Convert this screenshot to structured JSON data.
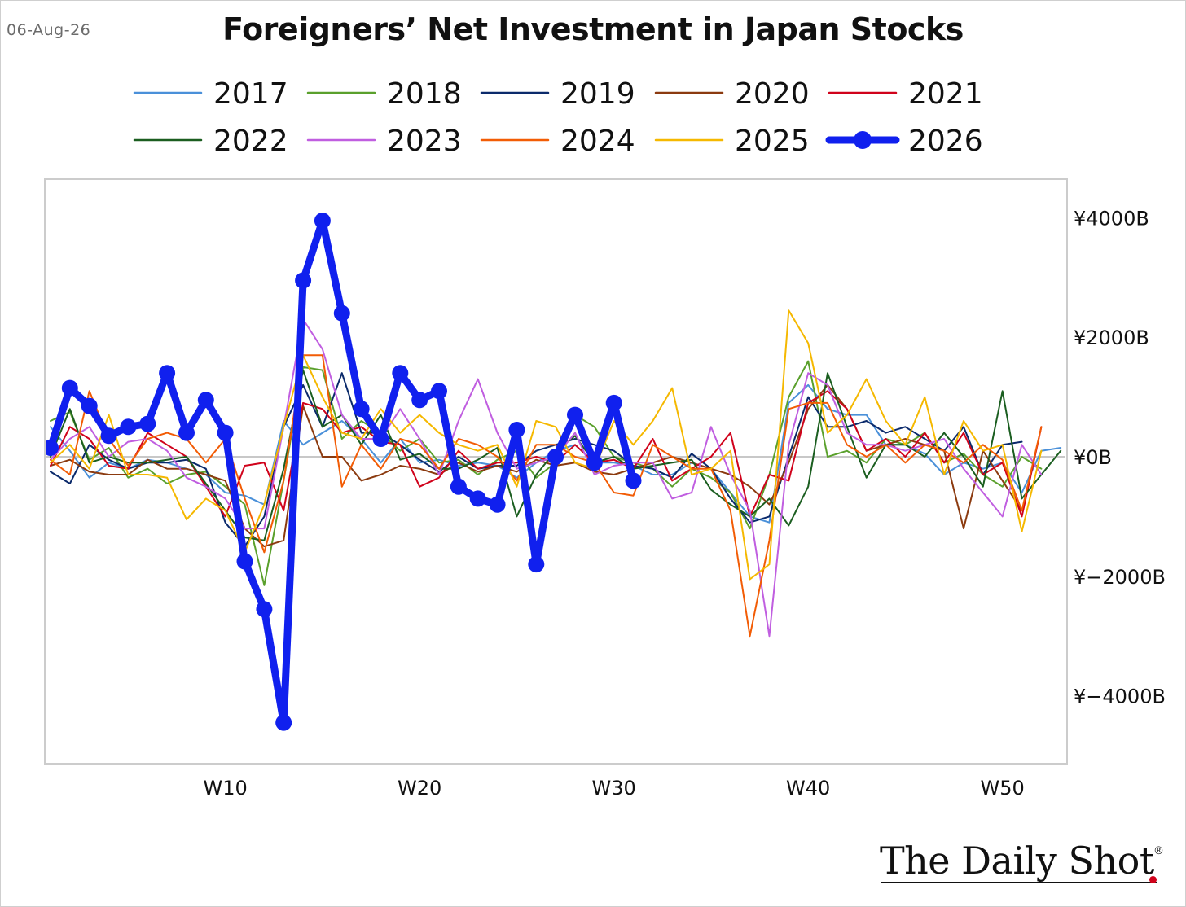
{
  "header": {
    "date": "06-Aug-26",
    "title": "Foreigners’ Net Investment in Japan Stocks"
  },
  "brand": {
    "name": "The Daily Shot",
    "registered_mark": "®"
  },
  "chart_data": {
    "type": "line",
    "title": "Foreigners’ Net Investment in Japan Stocks",
    "xlabel": "",
    "ylabel": "",
    "x_unit": "week",
    "x_tick_labels": [
      {
        "week": 10,
        "label": "W10"
      },
      {
        "week": 20,
        "label": "W20"
      },
      {
        "week": 30,
        "label": "W30"
      },
      {
        "week": 40,
        "label": "W40"
      },
      {
        "week": 50,
        "label": "W50"
      }
    ],
    "y_tick_labels": [
      {
        "value": 4000,
        "label": "¥4000B"
      },
      {
        "value": 2000,
        "label": "¥2000B"
      },
      {
        "value": 0,
        "label": "¥0B"
      },
      {
        "value": -2000,
        "label": "¥−2000B"
      },
      {
        "value": -4000,
        "label": "¥−4000B"
      }
    ],
    "xlim": [
      1,
      53
    ],
    "ylim": [
      -5200,
      4600
    ],
    "y_axis_side": "right",
    "zero_line": true,
    "legend_position": "top",
    "series": [
      {
        "name": "2017",
        "color": "#4a90d9",
        "width": 2,
        "values": [
          500,
          100,
          -350,
          -100,
          -200,
          -50,
          -100,
          -200,
          -300,
          -600,
          -650,
          -800,
          600,
          200,
          400,
          600,
          300,
          -100,
          300,
          -100,
          -50,
          -150,
          -100,
          -150,
          -350,
          -100,
          100,
          200,
          -100,
          -100,
          -150,
          -300,
          -300,
          -100,
          -200,
          -600,
          -1000,
          -1100,
          900,
          1200,
          800,
          700,
          700,
          200,
          200,
          50,
          -300,
          -100,
          -200,
          -100,
          -600,
          100,
          150
        ]
      },
      {
        "name": "2018",
        "color": "#5aa02c",
        "width": 2,
        "values": [
          600,
          750,
          -50,
          150,
          -350,
          -200,
          -450,
          -300,
          -250,
          -500,
          -800,
          -2150,
          -400,
          1500,
          1450,
          300,
          600,
          400,
          100,
          300,
          -100,
          -50,
          -300,
          -50,
          100,
          -350,
          -100,
          700,
          500,
          0,
          -100,
          -200,
          -500,
          -200,
          -350,
          -600,
          -1200,
          -300,
          1000,
          1600,
          0,
          100,
          -100,
          300,
          200,
          400,
          -100,
          50,
          -300,
          -500,
          0,
          -200
        ]
      },
      {
        "name": "2019",
        "color": "#0b2a6b",
        "width": 2,
        "values": [
          -250,
          -450,
          200,
          -50,
          -200,
          -100,
          -100,
          -50,
          -200,
          -1100,
          -1500,
          -1000,
          500,
          1200,
          500,
          1400,
          400,
          400,
          200,
          -50,
          -250,
          0,
          -200,
          -150,
          -150,
          100,
          200,
          300,
          200,
          100,
          -150,
          -200,
          -350,
          50,
          -200,
          -700,
          -1100,
          -1000,
          0,
          1000,
          500,
          500,
          600,
          400,
          500,
          300,
          100,
          500,
          -300,
          200,
          250
        ]
      },
      {
        "name": "2020",
        "color": "#8b3a0f",
        "width": 2,
        "values": [
          -150,
          -50,
          -250,
          -300,
          -300,
          -50,
          -200,
          -200,
          -300,
          -400,
          -1200,
          -1500,
          -1400,
          850,
          0,
          0,
          -400,
          -300,
          -150,
          -200,
          -300,
          -100,
          -250,
          -150,
          -250,
          -50,
          -150,
          -100,
          -250,
          -300,
          -200,
          -100,
          0,
          -100,
          -200,
          -300,
          -500,
          -800,
          -100,
          800,
          1200,
          800,
          100,
          200,
          300,
          200,
          100,
          -1200,
          100,
          -400,
          -900
        ]
      },
      {
        "name": "2021",
        "color": "#d0021b",
        "width": 2,
        "values": [
          -150,
          500,
          300,
          -150,
          -200,
          400,
          200,
          0,
          -500,
          -1000,
          -150,
          -100,
          -900,
          900,
          800,
          400,
          500,
          250,
          200,
          -500,
          -350,
          100,
          -200,
          -100,
          -100,
          0,
          -100,
          200,
          -100,
          -50,
          -200,
          300,
          -400,
          -200,
          0,
          400,
          -1000,
          -300,
          -400,
          900,
          1100,
          800,
          100,
          300,
          0,
          400,
          -100,
          400,
          -300,
          -100,
          -1000,
          500
        ]
      },
      {
        "name": "2022",
        "color": "#1b5e20",
        "width": 2,
        "values": [
          0,
          800,
          -100,
          0,
          -100,
          -100,
          -50,
          0,
          -450,
          -900,
          -1350,
          -1400,
          -200,
          1450,
          500,
          700,
          200,
          700,
          -50,
          50,
          -200,
          -200,
          -50,
          150,
          -1000,
          -300,
          100,
          350,
          -100,
          0,
          -200,
          -150,
          -100,
          -50,
          -550,
          -800,
          -1000,
          -700,
          -1150,
          -500,
          1400,
          500,
          -350,
          200,
          200,
          0,
          400,
          0,
          -500,
          1100,
          -700,
          -300,
          100
        ]
      },
      {
        "name": "2023",
        "color": "#c05ee0",
        "width": 2,
        "values": [
          -50,
          300,
          500,
          0,
          250,
          300,
          100,
          -350,
          -500,
          -700,
          -1200,
          -1200,
          500,
          2300,
          1800,
          700,
          300,
          300,
          800,
          300,
          -300,
          600,
          1300,
          400,
          -200,
          -100,
          0,
          400,
          -300,
          -150,
          -100,
          -100,
          -700,
          -600,
          500,
          -300,
          -900,
          -3000,
          200,
          1400,
          1200,
          400,
          200,
          200,
          100,
          200,
          300,
          -200,
          -600,
          -1000,
          200,
          -300
        ]
      },
      {
        "name": "2024",
        "color": "#f25c05",
        "width": 2,
        "values": [
          -50,
          -300,
          1100,
          300,
          -150,
          300,
          400,
          300,
          -100,
          300,
          -700,
          -1600,
          -400,
          1700,
          1700,
          -500,
          200,
          -200,
          300,
          200,
          -200,
          300,
          200,
          0,
          -400,
          200,
          200,
          0,
          -100,
          -600,
          -650,
          200,
          0,
          -200,
          -200,
          -900,
          -3000,
          -1400,
          800,
          900,
          900,
          200,
          0,
          200,
          -100,
          200,
          100,
          -100,
          200,
          -50,
          -900,
          500
        ]
      },
      {
        "name": "2025",
        "color": "#f5b800",
        "width": 2,
        "values": [
          -100,
          200,
          -200,
          700,
          -300,
          -300,
          -350,
          -1050,
          -700,
          -900,
          -1600,
          -800,
          500,
          1700,
          1000,
          400,
          300,
          800,
          400,
          700,
          400,
          200,
          100,
          200,
          -500,
          600,
          500,
          -100,
          -200,
          600,
          200,
          600,
          1150,
          -300,
          -200,
          100,
          -2050,
          -1800,
          2450,
          1900,
          400,
          700,
          1300,
          600,
          200,
          1000,
          -300,
          600,
          100,
          200,
          -1250,
          100
        ]
      },
      {
        "name": "2026",
        "color": "#1020ee",
        "width": 9,
        "markers": true,
        "values": [
          150,
          1150,
          850,
          350,
          500,
          550,
          1400,
          400,
          950,
          400,
          -1750,
          -2550,
          -4450,
          2950,
          3950,
          2400,
          800,
          300,
          1400,
          950,
          1100,
          -500,
          -700,
          -800,
          450,
          -1800,
          0,
          700,
          -100,
          900,
          -400
        ]
      }
    ]
  }
}
